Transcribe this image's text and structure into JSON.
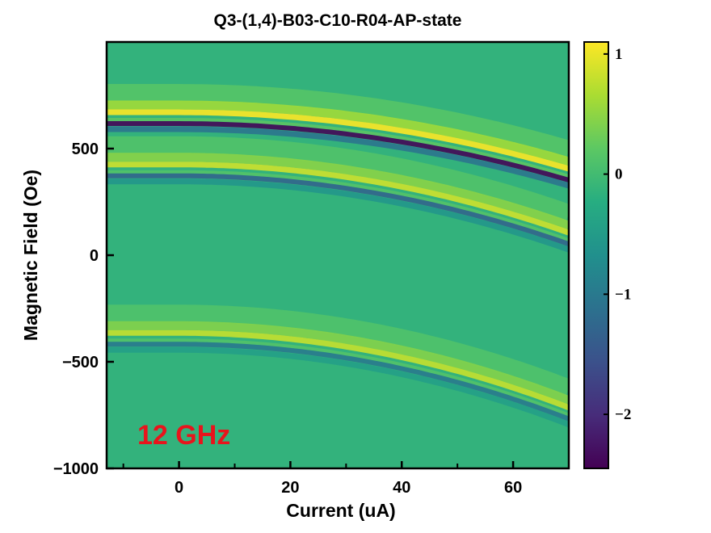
{
  "chart_data": {
    "type": "heatmap",
    "title": "Q3-(1,4)-B03-C10-R04-AP-state",
    "xlabel": "Current (uA)",
    "ylabel": "Magnetic Field (Oe)",
    "xlim": [
      -13,
      70
    ],
    "ylim": [
      -1000,
      1000
    ],
    "x_ticks": [
      0,
      20,
      40,
      60
    ],
    "x_tick_labels": [
      "0",
      "20",
      "40",
      "60"
    ],
    "x_minor_ticks": [
      -10,
      10,
      30,
      50
    ],
    "y_ticks": [
      -1000,
      -500,
      0,
      500
    ],
    "y_tick_labels": [
      "−1000",
      "−500",
      "0",
      "500"
    ],
    "colorbar": {
      "colormap": "viridis",
      "range": [
        -2.45,
        1.1
      ],
      "ticks": [
        1,
        0,
        -1,
        -2
      ],
      "tick_labels": [
        "1",
        "0",
        "−1",
        "−2"
      ]
    },
    "background_value": 0,
    "grid": false,
    "resonance_bands": [
      {
        "field_at_zero_current": 640,
        "field_at_max_current": 375,
        "positive_peak": 1.1,
        "negative_peak": -2.4
      },
      {
        "field_at_zero_current": 395,
        "field_at_max_current": 75,
        "positive_peak": 0.85,
        "negative_peak": -1.3
      },
      {
        "field_at_zero_current": -395,
        "field_at_max_current": -745,
        "positive_peak": 0.8,
        "negative_peak": -1.0
      }
    ],
    "annotation": {
      "text": "12 GHz",
      "color": "#e8141c",
      "position": "bottom-left"
    }
  }
}
